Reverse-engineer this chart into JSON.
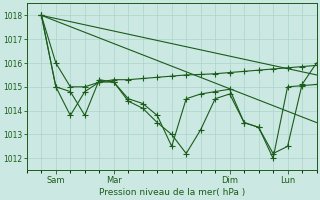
{
  "background_color": "#cce8e2",
  "grid_color": "#aad4cc",
  "line_color": "#1a5c1a",
  "xlabel": "Pression niveau de la mer( hPa )",
  "ylim": [
    1011.5,
    1018.5
  ],
  "yticks": [
    1012,
    1013,
    1014,
    1015,
    1016,
    1017,
    1018
  ],
  "xtick_labels": [
    "Sam",
    "Mar",
    "Dim",
    "Lun"
  ],
  "xtick_pos": [
    14,
    42,
    98,
    126
  ],
  "xlim": [
    0,
    140
  ],
  "series1_x": [
    7,
    14,
    21,
    28,
    35,
    42,
    49,
    56,
    63,
    70,
    77,
    84,
    91,
    98,
    105,
    112,
    119,
    126,
    133,
    140
  ],
  "series1_y": [
    1018.0,
    1016.0,
    1015.0,
    1015.0,
    1015.2,
    1015.3,
    1015.3,
    1015.35,
    1015.4,
    1015.45,
    1015.5,
    1015.52,
    1015.55,
    1015.6,
    1015.65,
    1015.7,
    1015.75,
    1015.8,
    1015.85,
    1015.9
  ],
  "series2_x": [
    7,
    14,
    21,
    28,
    35,
    42,
    49,
    56,
    63,
    70,
    77,
    84,
    91,
    98,
    105,
    112,
    119,
    126,
    133,
    140
  ],
  "series2_y": [
    1018.0,
    1015.0,
    1014.8,
    1013.8,
    1015.3,
    1015.2,
    1014.4,
    1014.1,
    1013.5,
    1013.0,
    1012.2,
    1013.2,
    1014.5,
    1014.7,
    1013.5,
    1013.3,
    1012.2,
    1012.5,
    1015.1,
    1016.0
  ],
  "series3_x": [
    7,
    14,
    21,
    28,
    35,
    42,
    49,
    56,
    63,
    70,
    77,
    84,
    91,
    98,
    105,
    112,
    119,
    126,
    133,
    140
  ],
  "series3_y": [
    1018.0,
    1015.0,
    1013.8,
    1014.8,
    1015.2,
    1015.2,
    1014.5,
    1014.3,
    1013.8,
    1012.5,
    1014.5,
    1014.7,
    1014.8,
    1014.9,
    1013.5,
    1013.3,
    1012.0,
    1015.0,
    1015.05,
    1015.1
  ],
  "trend1_x": [
    7,
    140
  ],
  "trend1_y": [
    1018.0,
    1015.5
  ],
  "trend2_x": [
    7,
    140
  ],
  "trend2_y": [
    1018.0,
    1013.5
  ]
}
